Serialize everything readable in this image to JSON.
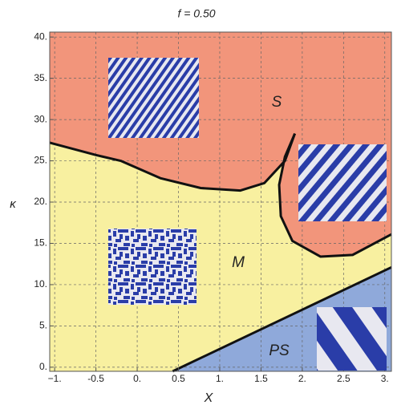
{
  "chart_data": {
    "type": "phase",
    "title": "f = 0.50",
    "x_label": "X",
    "y_label": "κ",
    "xlim": [
      -1.06,
      3.08
    ],
    "ylim": [
      -0.5,
      40.6
    ],
    "xticks": [
      {
        "value": -1,
        "label": "−1."
      },
      -0.5,
      {
        "value": 0,
        "label": "0."
      },
      0.5,
      {
        "value": 1,
        "label": "1."
      },
      1.5,
      {
        "value": 2,
        "label": "2."
      },
      2.5,
      {
        "value": 3,
        "label": "3."
      }
    ],
    "yticks": [
      {
        "value": 0,
        "label": "0."
      },
      {
        "value": 5,
        "label": "5."
      },
      {
        "value": 10,
        "label": "10."
      },
      {
        "value": 15,
        "label": "15."
      },
      {
        "value": 20,
        "label": "20."
      },
      {
        "value": 25,
        "label": "25."
      },
      {
        "value": 30,
        "label": "30."
      },
      {
        "value": 35,
        "label": "35."
      },
      {
        "value": 40,
        "label": "40."
      }
    ],
    "grid": true,
    "regions": [
      {
        "name": "S",
        "color": "#f2957b"
      },
      {
        "name": "M",
        "color": "#f8f0a0"
      },
      {
        "name": "PS",
        "color": "#8fa9da"
      }
    ],
    "boundaries": [
      {
        "x": [
          -1.06,
          -0.5,
          -0.2,
          0.28,
          0.77,
          1.25,
          1.54,
          1.79,
          1.91
        ],
        "y": [
          27.2,
          25.7,
          25.0,
          22.9,
          21.7,
          21.4,
          22.3,
          25.0,
          28.3
        ]
      },
      {
        "x": [
          1.91,
          1.79,
          1.72,
          1.74,
          1.88,
          2.22,
          2.61,
          3.08
        ],
        "y": [
          28.3,
          25.5,
          22.1,
          18.3,
          15.3,
          13.4,
          13.6,
          16.1
        ]
      },
      {
        "x": [
          0.43,
          3.08
        ],
        "y": [
          -0.5,
          12.1
        ]
      }
    ]
  }
}
